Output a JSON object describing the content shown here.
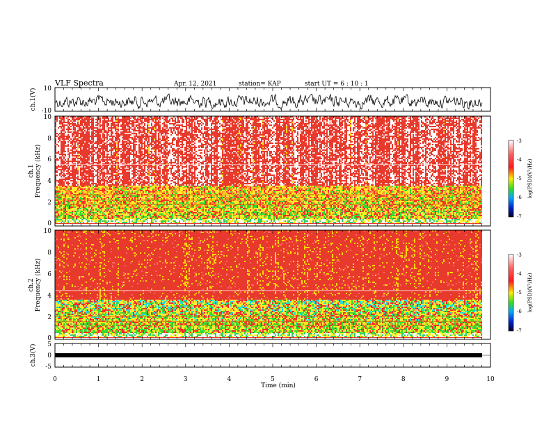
{
  "header": {
    "title": "VLF Spectra",
    "date": "Apr. 12, 2021",
    "station": "station= KAP",
    "start": "start  UT =   6 : 10 : 1"
  },
  "chart_data": [
    {
      "type": "line",
      "name": "ch1-voltage",
      "ylabel": "ch.1(V)",
      "ylim": [
        -10,
        10
      ],
      "yticks": [
        "10",
        "-10"
      ],
      "xlim": [
        0,
        10
      ]
    },
    {
      "type": "heatmap",
      "name": "ch1-spectrogram",
      "ylabel_line1": "ch.1",
      "ylabel_line2": "Frequency  (kHz)",
      "ylim": [
        0,
        10
      ],
      "yticks": [
        "0",
        "2",
        "4",
        "6",
        "8",
        "10"
      ],
      "xlim": [
        0,
        10
      ],
      "colorbar": {
        "label": "log(PSD)(V²/Hz)",
        "ticks": [
          "-3",
          "-4",
          "-5",
          "-6",
          "-7"
        ],
        "range": [
          -7,
          -3
        ]
      }
    },
    {
      "type": "heatmap",
      "name": "ch2-spectrogram",
      "ylabel_line1": "ch.2",
      "ylabel_line2": "Frequency  (kHz)",
      "ylim": [
        0,
        10
      ],
      "yticks": [
        "0",
        "2",
        "4",
        "6",
        "8",
        "10"
      ],
      "xlim": [
        0,
        10
      ],
      "colorbar": {
        "label": "log(PSD)(V²/Hz)",
        "ticks": [
          "-3",
          "-4",
          "-5",
          "-6",
          "-7"
        ],
        "range": [
          -7,
          -3
        ]
      }
    },
    {
      "type": "line",
      "name": "ch3-voltage",
      "ylabel": "ch.3(V)",
      "ylim": [
        -5,
        5
      ],
      "yticks": [
        "5",
        "0",
        "-5"
      ],
      "xlim": [
        0,
        10
      ]
    }
  ],
  "xaxis": {
    "label": "Time  (min)",
    "ticks": [
      "0",
      "1",
      "2",
      "3",
      "4",
      "5",
      "6",
      "7",
      "8",
      "9",
      "10"
    ]
  }
}
